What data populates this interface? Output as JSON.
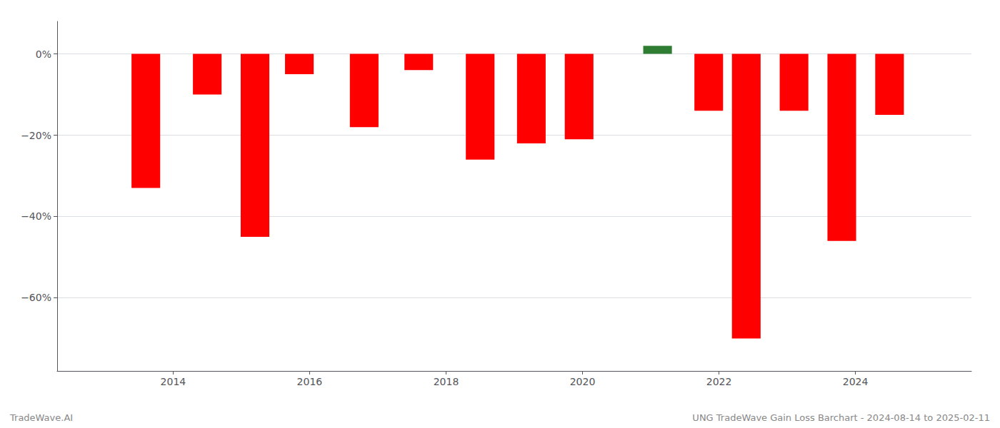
{
  "chart_data": {
    "type": "bar",
    "x": [
      2013.6,
      2014.5,
      2015.2,
      2015.85,
      2016.8,
      2017.6,
      2018.5,
      2019.25,
      2019.95,
      2021.1,
      2021.85,
      2022.4,
      2023.1,
      2023.8,
      2024.5
    ],
    "values": [
      -33,
      -10,
      -45,
      -5,
      -18,
      -4,
      -26,
      -22,
      -21,
      2,
      -14,
      -70,
      -14,
      -46,
      -15
    ],
    "colors": [
      "#FF0000",
      "#FF0000",
      "#FF0000",
      "#FF0000",
      "#FF0000",
      "#FF0000",
      "#FF0000",
      "#FF0000",
      "#FF0000",
      "#2E7D32",
      "#FF0000",
      "#FF0000",
      "#FF0000",
      "#FF0000",
      "#FF0000"
    ],
    "xlim": [
      2012.3,
      2025.7
    ],
    "xticks": [
      2014,
      2016,
      2018,
      2020,
      2022,
      2024
    ],
    "ylim": [
      -78,
      8
    ],
    "yticks": [
      {
        "value": 0,
        "label": "0%"
      },
      {
        "value": -20,
        "label": "−20%"
      },
      {
        "value": -40,
        "label": "−40%"
      },
      {
        "value": -60,
        "label": "−60%"
      }
    ],
    "grid": true,
    "annotations": [
      "TradeWave.AI",
      "UNG TradeWave Gain Loss Barchart - 2024-08-14 to 2025-02-11"
    ]
  }
}
